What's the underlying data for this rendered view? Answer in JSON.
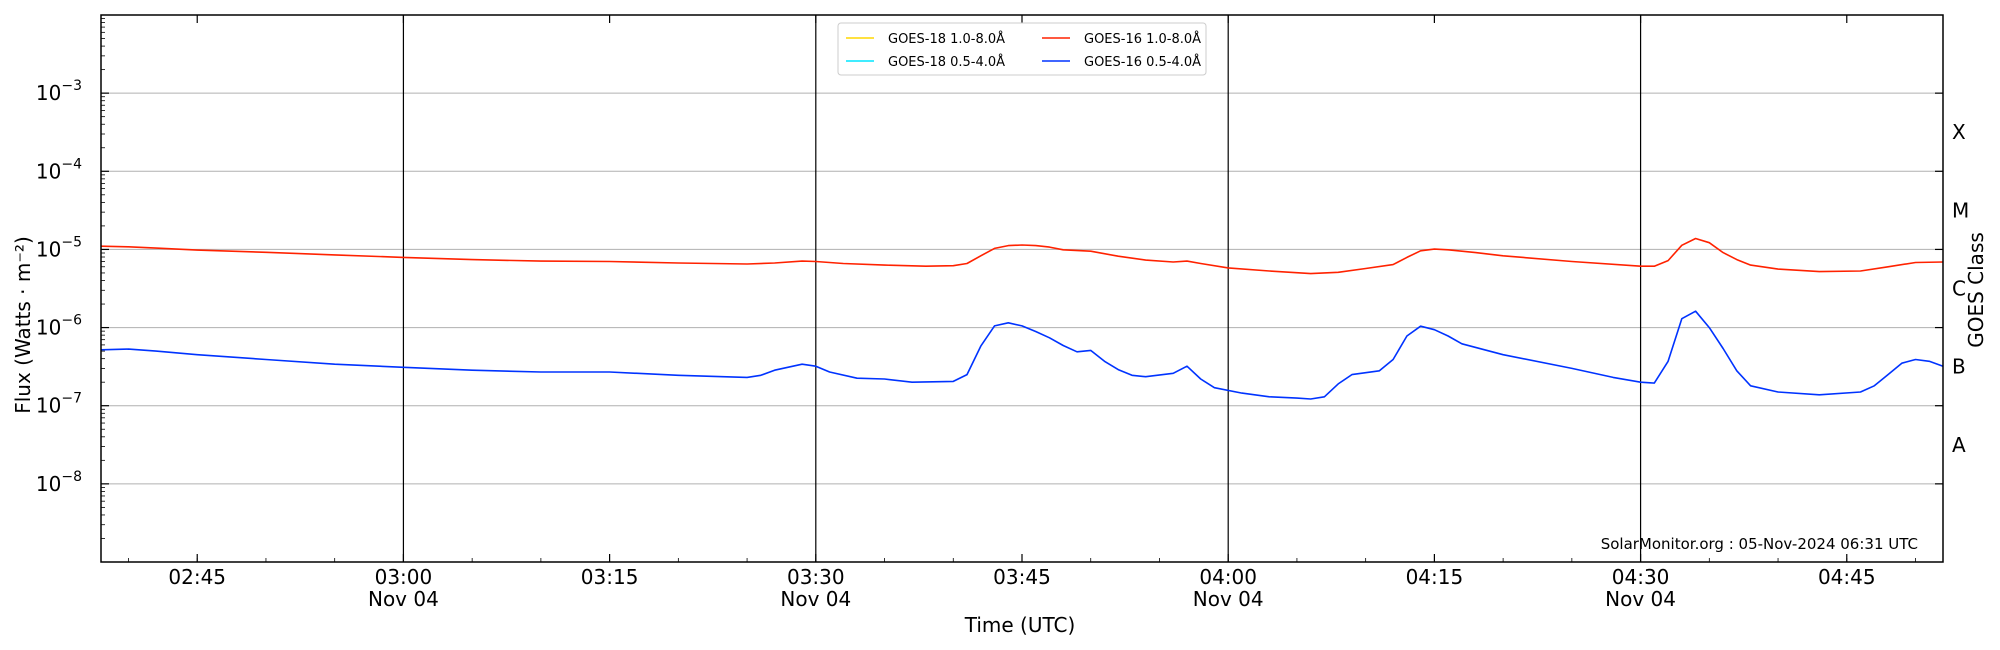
{
  "chart_data": {
    "type": "line",
    "xlabel": "Time (UTC)",
    "ylabel": "Flux (Watts · m⁻²)",
    "right_label": "GOES Class",
    "credit": "SolarMonitor.org : 05-Nov-2024 06:31 UTC",
    "y_scale": "log",
    "ylim": [
      1e-09,
      0.01
    ],
    "xlim": [
      "02:38",
      "04:52"
    ],
    "grid": "horizontal",
    "legend_position": "top-center",
    "y_ticks": [
      {
        "exp": -8,
        "base": "10",
        "sup": "−8"
      },
      {
        "exp": -7,
        "base": "10",
        "sup": "−7"
      },
      {
        "exp": -6,
        "base": "10",
        "sup": "−6"
      },
      {
        "exp": -5,
        "base": "10",
        "sup": "−5"
      },
      {
        "exp": -4,
        "base": "10",
        "sup": "−4"
      },
      {
        "exp": -3,
        "base": "10",
        "sup": "−3"
      }
    ],
    "x_ticks": [
      {
        "time": "02:45",
        "label": "02:45",
        "date": ""
      },
      {
        "time": "03:00",
        "label": "03:00",
        "date": "Nov 04"
      },
      {
        "time": "03:15",
        "label": "03:15",
        "date": ""
      },
      {
        "time": "03:30",
        "label": "03:30",
        "date": "Nov 04"
      },
      {
        "time": "03:45",
        "label": "03:45",
        "date": ""
      },
      {
        "time": "04:00",
        "label": "04:00",
        "date": "Nov 04"
      },
      {
        "time": "04:15",
        "label": "04:15",
        "date": ""
      },
      {
        "time": "04:30",
        "label": "04:30",
        "date": "Nov 04"
      },
      {
        "time": "04:45",
        "label": "04:45",
        "date": ""
      }
    ],
    "vlines": [
      "03:00",
      "03:30",
      "04:00",
      "04:30"
    ],
    "goes_classes": [
      {
        "label": "A",
        "exp": -7.5
      },
      {
        "label": "B",
        "exp": -6.5
      },
      {
        "label": "C",
        "exp": -5.5
      },
      {
        "label": "M",
        "exp": -4.5
      },
      {
        "label": "X",
        "exp": -3.5
      }
    ],
    "legend": [
      {
        "name": "GOES-18 1.0-8.0Å",
        "color": "#ffd700"
      },
      {
        "name": "GOES-18 0.5-4.0Å",
        "color": "#00e5ff"
      },
      {
        "name": "GOES-16 1.0-8.0Å",
        "color": "#ff2200"
      },
      {
        "name": "GOES-16 0.5-4.0Å",
        "color": "#0033ff"
      }
    ],
    "series": [
      {
        "name": "GOES-16 1.0-8.0Å",
        "color": "#ff2200",
        "points": [
          [
            "02:38",
            1.1e-05
          ],
          [
            "02:40",
            1.08e-05
          ],
          [
            "02:42",
            1.04e-05
          ],
          [
            "02:45",
            9.8e-06
          ],
          [
            "02:50",
            9.2e-06
          ],
          [
            "02:55",
            8.5e-06
          ],
          [
            "03:00",
            7.9e-06
          ],
          [
            "03:05",
            7.4e-06
          ],
          [
            "03:10",
            7.1e-06
          ],
          [
            "03:15",
            7e-06
          ],
          [
            "03:20",
            6.7e-06
          ],
          [
            "03:25",
            6.5e-06
          ],
          [
            "03:27",
            6.7e-06
          ],
          [
            "03:29",
            7.1e-06
          ],
          [
            "03:30",
            7e-06
          ],
          [
            "03:32",
            6.6e-06
          ],
          [
            "03:35",
            6.3e-06
          ],
          [
            "03:38",
            6.1e-06
          ],
          [
            "03:40",
            6.2e-06
          ],
          [
            "03:41",
            6.6e-06
          ],
          [
            "03:42",
            8.3e-06
          ],
          [
            "03:43",
            1.03e-05
          ],
          [
            "03:44",
            1.12e-05
          ],
          [
            "03:45",
            1.14e-05
          ],
          [
            "03:46",
            1.12e-05
          ],
          [
            "03:47",
            1.07e-05
          ],
          [
            "03:48",
            9.9e-06
          ],
          [
            "03:50",
            9.5e-06
          ],
          [
            "03:52",
            8.2e-06
          ],
          [
            "03:54",
            7.3e-06
          ],
          [
            "03:56",
            6.9e-06
          ],
          [
            "03:57",
            7.1e-06
          ],
          [
            "03:58",
            6.6e-06
          ],
          [
            "04:00",
            5.8e-06
          ],
          [
            "04:03",
            5.3e-06
          ],
          [
            "04:06",
            4.9e-06
          ],
          [
            "04:08",
            5.1e-06
          ],
          [
            "04:10",
            5.7e-06
          ],
          [
            "04:12",
            6.4e-06
          ],
          [
            "04:13",
            7.9e-06
          ],
          [
            "04:14",
            9.6e-06
          ],
          [
            "04:15",
            1.01e-05
          ],
          [
            "04:16",
            9.9e-06
          ],
          [
            "04:18",
            9.1e-06
          ],
          [
            "04:20",
            8.3e-06
          ],
          [
            "04:25",
            7e-06
          ],
          [
            "04:30",
            6.1e-06
          ],
          [
            "04:31",
            6.1e-06
          ],
          [
            "04:32",
            7.2e-06
          ],
          [
            "04:33",
            1.13e-05
          ],
          [
            "04:34",
            1.38e-05
          ],
          [
            "04:35",
            1.22e-05
          ],
          [
            "04:36",
            9.1e-06
          ],
          [
            "04:37",
            7.4e-06
          ],
          [
            "04:38",
            6.3e-06
          ],
          [
            "04:40",
            5.6e-06
          ],
          [
            "04:43",
            5.2e-06
          ],
          [
            "04:46",
            5.3e-06
          ],
          [
            "04:48",
            6e-06
          ],
          [
            "04:50",
            6.8e-06
          ],
          [
            "04:52",
            6.9e-06
          ]
        ]
      },
      {
        "name": "GOES-16 0.5-4.0Å",
        "color": "#0033ff",
        "points": [
          [
            "02:38",
            5.2e-07
          ],
          [
            "02:40",
            5.3e-07
          ],
          [
            "02:42",
            5e-07
          ],
          [
            "02:45",
            4.5e-07
          ],
          [
            "02:50",
            3.9e-07
          ],
          [
            "02:55",
            3.4e-07
          ],
          [
            "03:00",
            3.1e-07
          ],
          [
            "03:05",
            2.85e-07
          ],
          [
            "03:10",
            2.7e-07
          ],
          [
            "03:15",
            2.7e-07
          ],
          [
            "03:20",
            2.45e-07
          ],
          [
            "03:25",
            2.3e-07
          ],
          [
            "03:26",
            2.45e-07
          ],
          [
            "03:27",
            2.85e-07
          ],
          [
            "03:29",
            3.4e-07
          ],
          [
            "03:30",
            3.2e-07
          ],
          [
            "03:31",
            2.7e-07
          ],
          [
            "03:33",
            2.25e-07
          ],
          [
            "03:35",
            2.2e-07
          ],
          [
            "03:37",
            2e-07
          ],
          [
            "03:40",
            2.05e-07
          ],
          [
            "03:41",
            2.5e-07
          ],
          [
            "03:42",
            5.8e-07
          ],
          [
            "03:43",
            1.05e-06
          ],
          [
            "03:44",
            1.15e-06
          ],
          [
            "03:45",
            1.05e-06
          ],
          [
            "03:46",
            8.9e-07
          ],
          [
            "03:47",
            7.4e-07
          ],
          [
            "03:48",
            5.9e-07
          ],
          [
            "03:49",
            4.9e-07
          ],
          [
            "03:50",
            5.1e-07
          ],
          [
            "03:51",
            3.7e-07
          ],
          [
            "03:52",
            2.9e-07
          ],
          [
            "03:53",
            2.45e-07
          ],
          [
            "03:54",
            2.35e-07
          ],
          [
            "03:56",
            2.6e-07
          ],
          [
            "03:57",
            3.2e-07
          ],
          [
            "03:58",
            2.2e-07
          ],
          [
            "03:59",
            1.7e-07
          ],
          [
            "04:01",
            1.45e-07
          ],
          [
            "04:03",
            1.3e-07
          ],
          [
            "04:05",
            1.25e-07
          ],
          [
            "04:06",
            1.22e-07
          ],
          [
            "04:07",
            1.3e-07
          ],
          [
            "04:08",
            1.9e-07
          ],
          [
            "04:09",
            2.5e-07
          ],
          [
            "04:11",
            2.8e-07
          ],
          [
            "04:12",
            3.9e-07
          ],
          [
            "04:13",
            7.8e-07
          ],
          [
            "04:14",
            1.04e-06
          ],
          [
            "04:15",
            9.4e-07
          ],
          [
            "04:16",
            7.8e-07
          ],
          [
            "04:17",
            6.2e-07
          ],
          [
            "04:20",
            4.5e-07
          ],
          [
            "04:25",
            3e-07
          ],
          [
            "04:28",
            2.3e-07
          ],
          [
            "04:30",
            2e-07
          ],
          [
            "04:31",
            1.95e-07
          ],
          [
            "04:32",
            3.7e-07
          ],
          [
            "04:33",
            1.3e-06
          ],
          [
            "04:34",
            1.62e-06
          ],
          [
            "04:35",
            1e-06
          ],
          [
            "04:36",
            5.4e-07
          ],
          [
            "04:37",
            2.8e-07
          ],
          [
            "04:38",
            1.8e-07
          ],
          [
            "04:40",
            1.5e-07
          ],
          [
            "04:43",
            1.38e-07
          ],
          [
            "04:46",
            1.5e-07
          ],
          [
            "04:47",
            1.8e-07
          ],
          [
            "04:48",
            2.5e-07
          ],
          [
            "04:49",
            3.5e-07
          ],
          [
            "04:50",
            3.9e-07
          ],
          [
            "04:51",
            3.7e-07
          ],
          [
            "04:52",
            3.2e-07
          ]
        ]
      }
    ]
  }
}
